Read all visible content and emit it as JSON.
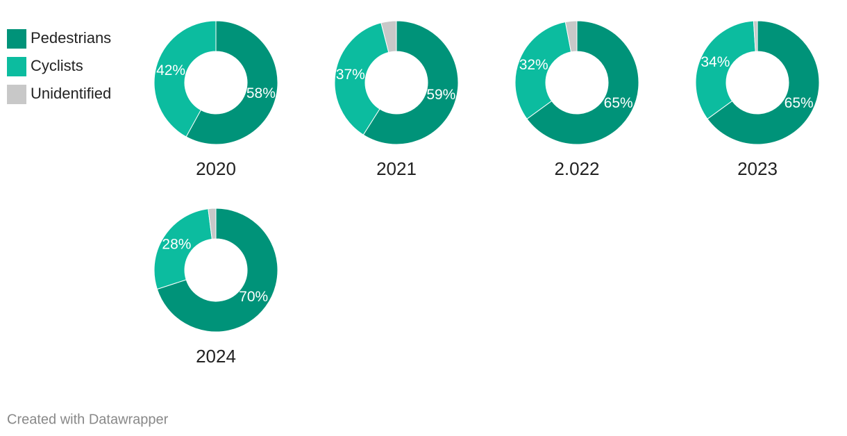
{
  "chart_data": {
    "type": "pie",
    "categories": [
      "Pedestrians",
      "Cyclists",
      "Unidentified"
    ],
    "colors": [
      "#009379",
      "#0cbc9f",
      "#c8c8c8"
    ],
    "series": [
      {
        "name": "2020",
        "values": [
          58,
          42,
          0
        ],
        "value_labels": [
          "58%",
          "42%",
          null
        ]
      },
      {
        "name": "2021",
        "values": [
          59,
          37,
          4
        ],
        "value_labels": [
          "59%",
          "37%",
          null
        ]
      },
      {
        "name": "2.022",
        "values": [
          65,
          32,
          3
        ],
        "value_labels": [
          "65%",
          "32%",
          null
        ]
      },
      {
        "name": "2023",
        "values": [
          65,
          34,
          1
        ],
        "value_labels": [
          "65%",
          "34%",
          null
        ]
      },
      {
        "name": "2024",
        "values": [
          70,
          28,
          2
        ],
        "value_labels": [
          "70%",
          "28%",
          null
        ]
      }
    ],
    "footer": "Created with Datawrapper"
  }
}
